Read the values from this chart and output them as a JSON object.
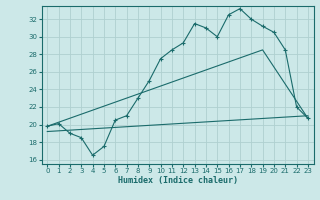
{
  "xlabel": "Humidex (Indice chaleur)",
  "bg_color": "#cce8e8",
  "line_color": "#1a6b6b",
  "grid_color": "#afd0d0",
  "xlim": [
    -0.5,
    23.5
  ],
  "ylim": [
    15.5,
    33.5
  ],
  "xticks": [
    0,
    1,
    2,
    3,
    4,
    5,
    6,
    7,
    8,
    9,
    10,
    11,
    12,
    13,
    14,
    15,
    16,
    17,
    18,
    19,
    20,
    21,
    22,
    23
  ],
  "yticks": [
    16,
    18,
    20,
    22,
    24,
    26,
    28,
    30,
    32
  ],
  "line1_x": [
    0,
    1,
    2,
    3,
    4,
    5,
    6,
    7,
    8,
    9,
    10,
    11,
    12,
    13,
    14,
    15,
    16,
    17,
    18,
    19,
    20,
    21,
    22,
    23
  ],
  "line1_y": [
    19.8,
    20.1,
    19.0,
    18.5,
    16.5,
    17.5,
    20.5,
    21.0,
    23.0,
    25.0,
    27.5,
    28.5,
    29.3,
    31.5,
    31.0,
    30.0,
    32.5,
    33.2,
    32.0,
    31.2,
    30.5,
    28.5,
    22.0,
    20.7
  ],
  "line2_x": [
    0,
    19,
    23
  ],
  "line2_y": [
    19.8,
    28.5,
    20.7
  ],
  "line3_x": [
    0,
    23
  ],
  "line3_y": [
    19.2,
    21.0
  ]
}
